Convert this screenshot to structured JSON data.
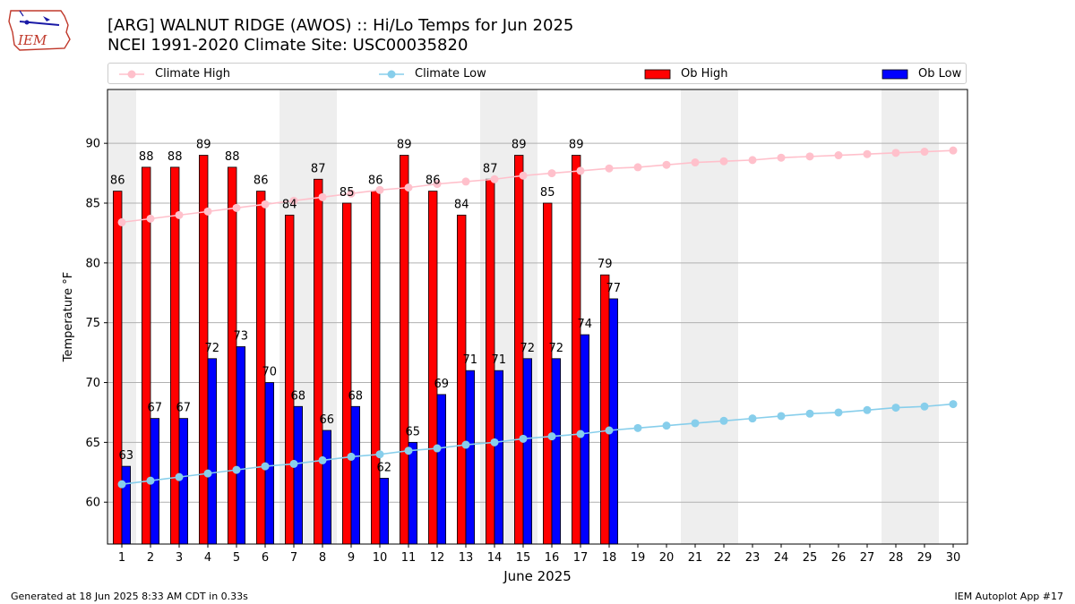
{
  "header": {
    "title_line1": "[ARG] WALNUT RIDGE (AWOS) :: Hi/Lo Temps for Jun 2025",
    "title_line2": "NCEI 1991-2020 Climate Site: USC00035820"
  },
  "logo": {
    "text": "IEM",
    "icon": "iem-iowa-logo"
  },
  "footer": {
    "left": "Generated at 18 Jun 2025 8:33 AM CDT in 0.33s",
    "right": "IEM Autoplot App #17"
  },
  "colors": {
    "climate_high": "#ffc0cb",
    "climate_low": "#87ceeb",
    "ob_high": "#ff0000",
    "ob_low": "#0000ff",
    "weekend_band": "#eeeeee",
    "grid": "#b0b0b0"
  },
  "chart_data": {
    "type": "bar",
    "xlabel": "June 2025",
    "ylabel": "Temperature °F",
    "ylim": [
      56.5,
      94.5
    ],
    "yticks": [
      60,
      65,
      70,
      75,
      80,
      85,
      90
    ],
    "xlim": [
      0.5,
      30.5
    ],
    "grid": "horizontal",
    "legend_position": "top",
    "days": [
      1,
      2,
      3,
      4,
      5,
      6,
      7,
      8,
      9,
      10,
      11,
      12,
      13,
      14,
      15,
      16,
      17,
      18,
      19,
      20,
      21,
      22,
      23,
      24,
      25,
      26,
      27,
      28,
      29,
      30
    ],
    "weekend_bands": [
      [
        1,
        1
      ],
      [
        7,
        8
      ],
      [
        14,
        15
      ],
      [
        21,
        22
      ],
      [
        28,
        29
      ]
    ],
    "series": [
      {
        "name": "Climate High",
        "kind": "line",
        "values": [
          83.4,
          83.7,
          84.0,
          84.3,
          84.6,
          84.9,
          85.2,
          85.5,
          85.8,
          86.1,
          86.3,
          86.6,
          86.8,
          87.0,
          87.3,
          87.5,
          87.7,
          87.9,
          88.0,
          88.2,
          88.4,
          88.5,
          88.6,
          88.8,
          88.9,
          89.0,
          89.1,
          89.2,
          89.3,
          89.4
        ]
      },
      {
        "name": "Climate Low",
        "kind": "line",
        "values": [
          61.5,
          61.8,
          62.1,
          62.4,
          62.7,
          63.0,
          63.2,
          63.5,
          63.8,
          64.0,
          64.3,
          64.5,
          64.8,
          65.0,
          65.3,
          65.5,
          65.7,
          66.0,
          66.2,
          66.4,
          66.6,
          66.8,
          67.0,
          67.2,
          67.4,
          67.5,
          67.7,
          67.9,
          68.0,
          68.2
        ]
      },
      {
        "name": "Ob High",
        "kind": "bar",
        "values": [
          86,
          88,
          88,
          89,
          88,
          86,
          84,
          87,
          85,
          86,
          89,
          86,
          84,
          87,
          89,
          85,
          89,
          79
        ]
      },
      {
        "name": "Ob Low",
        "kind": "bar",
        "values": [
          63,
          67,
          67,
          72,
          73,
          70,
          68,
          66,
          68,
          62,
          65,
          69,
          71,
          71,
          72,
          72,
          74,
          77
        ]
      }
    ]
  }
}
